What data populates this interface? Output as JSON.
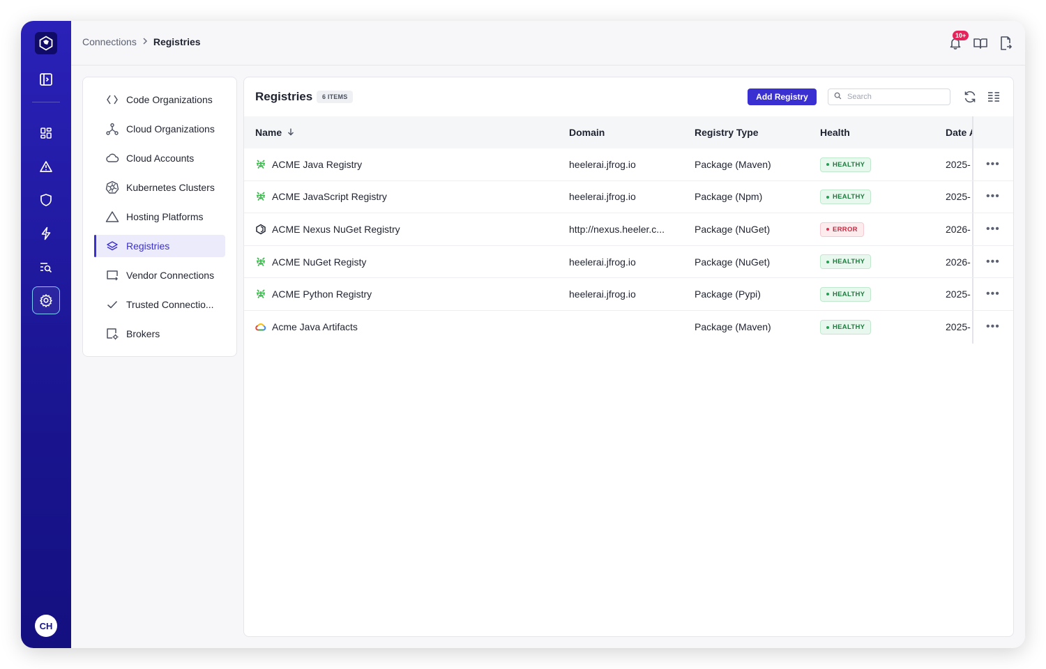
{
  "header": {
    "breadcrumb": {
      "parent": "Connections",
      "current": "Registries"
    },
    "notification_count": "10+"
  },
  "rail": {
    "avatar_initials": "CH",
    "items": [
      "sidebar-toggle-icon",
      "dashboard-icon",
      "alert-triangle-icon",
      "shield-icon",
      "bolt-icon",
      "search-list-icon",
      "settings-gear-icon"
    ]
  },
  "subnav": {
    "items": [
      {
        "label": "Code Organizations",
        "icon": "code-brackets-icon"
      },
      {
        "label": "Cloud Organizations",
        "icon": "network-nodes-icon"
      },
      {
        "label": "Cloud Accounts",
        "icon": "cloud-icon"
      },
      {
        "label": "Kubernetes Clusters",
        "icon": "kubernetes-icon"
      },
      {
        "label": "Hosting Platforms",
        "icon": "triangle-icon"
      },
      {
        "label": "Registries",
        "icon": "layers-icon",
        "active": true
      },
      {
        "label": "Vendor Connections",
        "icon": "vendor-screen-icon"
      },
      {
        "label": "Trusted Connectio...",
        "icon": "check-icon"
      },
      {
        "label": "Brokers",
        "icon": "broker-gear-icon"
      }
    ]
  },
  "panel": {
    "title": "Registries",
    "items_badge": "6 ITEMS",
    "add_button": "Add Registry",
    "search_placeholder": "Search"
  },
  "table": {
    "columns": [
      "Name",
      "Domain",
      "Registry Type",
      "Health",
      "Date A"
    ],
    "rows": [
      {
        "name": "ACME Java Registry",
        "icon": "jfrog-icon",
        "domain": "heelerai.jfrog.io",
        "type": "Package (Maven)",
        "health": "HEALTHY",
        "date": "2025-"
      },
      {
        "name": "ACME JavaScript Registry",
        "icon": "jfrog-icon",
        "domain": "heelerai.jfrog.io",
        "type": "Package (Npm)",
        "health": "HEALTHY",
        "date": "2025-"
      },
      {
        "name": "ACME Nexus NuGet Registry",
        "icon": "nexus-hexagon-icon",
        "domain": "http://nexus.heeler.c...",
        "type": "Package (NuGet)",
        "health": "ERROR",
        "date": "2026-"
      },
      {
        "name": "ACME NuGet Registy",
        "icon": "jfrog-icon",
        "domain": "heelerai.jfrog.io",
        "type": "Package (NuGet)",
        "health": "HEALTHY",
        "date": "2026-"
      },
      {
        "name": "ACME Python Registry",
        "icon": "jfrog-icon",
        "domain": "heelerai.jfrog.io",
        "type": "Package (Pypi)",
        "health": "HEALTHY",
        "date": "2025-"
      },
      {
        "name": "Acme Java Artifacts",
        "icon": "google-cloud-icon",
        "domain": "",
        "type": "Package (Maven)",
        "health": "HEALTHY",
        "date": "2025-"
      }
    ]
  },
  "colors": {
    "rail": "#1a1591",
    "accent": "#3a2fd1",
    "healthy": "#1e7a3e",
    "error": "#c8283f",
    "notification": "#e5245b"
  }
}
